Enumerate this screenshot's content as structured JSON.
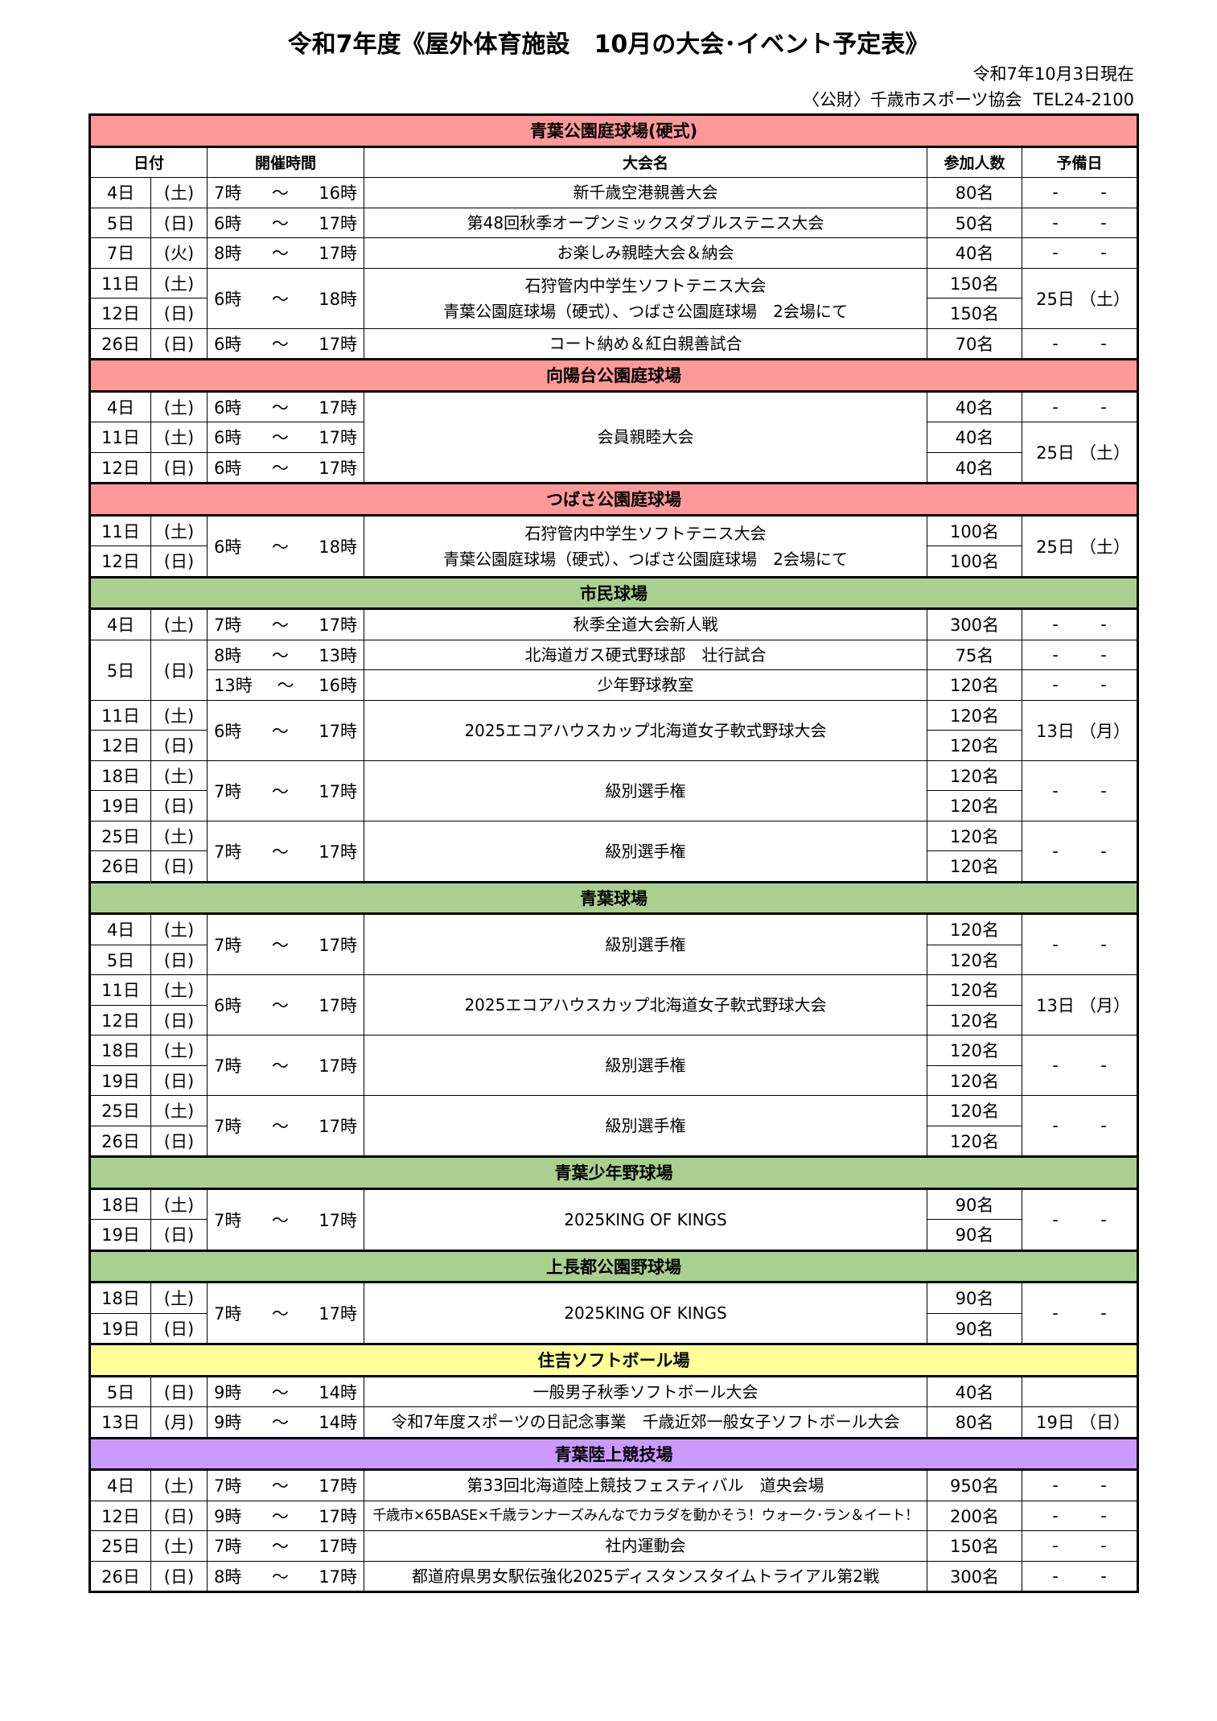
{
  "header": {
    "title": "令和7年度《屋外体育施設　10月の大会･イベント予定表》",
    "as_of": "令和7年10月3日現在",
    "org": "〈公財〉千歳市スポーツ協会",
    "tel": "TEL24-2100"
  },
  "columns": {
    "date": "日付",
    "time": "開催時間",
    "event": "大会名",
    "count": "参加人数",
    "reserve": "予備日"
  },
  "time_separator": "～",
  "colors": {
    "pink": "#ff9999",
    "green": "#a9d08e",
    "yellow": "#ffff99",
    "purple": "#cc99ff"
  },
  "sections": [
    {
      "name": "青葉公園庭球場(硬式)",
      "color": "#ff9999",
      "show_column_header": true,
      "rows": [
        {
          "day": "4日",
          "wd": "(土)",
          "from": "7時",
          "to": "16時",
          "event": [
            "新千歳空港親善大会"
          ],
          "count": "80名",
          "reserve": [
            "-",
            "-"
          ]
        },
        {
          "day": "5日",
          "wd": "(日)",
          "from": "6時",
          "to": "17時",
          "event": [
            "第48回秋季オープンミックスダブルステニス大会"
          ],
          "count": "50名",
          "reserve": [
            "-",
            "-"
          ]
        },
        {
          "day": "7日",
          "wd": "(火)",
          "from": "8時",
          "to": "17時",
          "event": [
            "お楽しみ親睦大会＆納会"
          ],
          "count": "40名",
          "reserve": [
            "-",
            "-"
          ]
        },
        {
          "day": "11日",
          "wd": "(土)",
          "from": "6時",
          "to": "18時",
          "event": [
            "石狩管内中学生ソフトテニス大会",
            "青葉公園庭球場（硬式）、つばさ公園庭球場　2会場にて"
          ],
          "count": "150名",
          "reserve": [
            "25日",
            "（土）"
          ]
        },
        {
          "day": "12日",
          "wd": "(日)",
          "count": "150名"
        },
        {
          "day": "26日",
          "wd": "(日)",
          "from": "6時",
          "to": "17時",
          "event": [
            "コート納め＆紅白親善試合"
          ],
          "count": "70名",
          "reserve": [
            "-",
            "-"
          ]
        }
      ]
    },
    {
      "name": "向陽台公園庭球場",
      "color": "#ff9999",
      "rows": [
        {
          "day": "4日",
          "wd": "(土)",
          "from": "6時",
          "to": "17時",
          "event": [
            "会員親睦大会"
          ],
          "count": "40名",
          "reserve": [
            "-",
            "-"
          ]
        },
        {
          "day": "11日",
          "wd": "(土)",
          "from": "6時",
          "to": "17時",
          "count": "40名",
          "reserve": [
            "25日",
            "（土）"
          ]
        },
        {
          "day": "12日",
          "wd": "(日)",
          "from": "6時",
          "to": "17時",
          "count": "40名"
        }
      ]
    },
    {
      "name": "つばさ公園庭球場",
      "color": "#ff9999",
      "rows": [
        {
          "day": "11日",
          "wd": "(土)",
          "from": "6時",
          "to": "18時",
          "event": [
            "石狩管内中学生ソフトテニス大会",
            "青葉公園庭球場（硬式）、つばさ公園庭球場　2会場にて"
          ],
          "count": "100名",
          "reserve": [
            "25日",
            "（土）"
          ]
        },
        {
          "day": "12日",
          "wd": "(日)",
          "count": "100名"
        }
      ]
    },
    {
      "name": "市民球場",
      "color": "#a9d08e",
      "rows": [
        {
          "day": "4日",
          "wd": "(土)",
          "from": "7時",
          "to": "17時",
          "event": [
            "秋季全道大会新人戦"
          ],
          "count": "300名",
          "reserve": [
            "-",
            "-"
          ]
        },
        {
          "day": "5日",
          "wd": "(日)",
          "from": "8時",
          "to": "13時",
          "event": [
            "北海道ガス硬式野球部　壮行試合"
          ],
          "count": "75名",
          "reserve": [
            "-",
            "-"
          ]
        },
        {
          "from": "13時",
          "to": "16時",
          "event": [
            "少年野球教室"
          ],
          "count": "120名",
          "reserve": [
            "-",
            "-"
          ]
        },
        {
          "day": "11日",
          "wd": "(土)",
          "from": "6時",
          "to": "17時",
          "event": [
            "2025エコアハウスカップ北海道女子軟式野球大会"
          ],
          "count": "120名",
          "reserve": [
            "13日",
            "（月）"
          ]
        },
        {
          "day": "12日",
          "wd": "(日)",
          "count": "120名"
        },
        {
          "day": "18日",
          "wd": "(土)",
          "from": "7時",
          "to": "17時",
          "event": [
            "級別選手権"
          ],
          "count": "120名",
          "reserve": [
            "-",
            "-"
          ]
        },
        {
          "day": "19日",
          "wd": "(日)",
          "count": "120名"
        },
        {
          "day": "25日",
          "wd": "(土)",
          "from": "7時",
          "to": "17時",
          "event": [
            "級別選手権"
          ],
          "count": "120名",
          "reserve": [
            "-",
            "-"
          ]
        },
        {
          "day": "26日",
          "wd": "(日)",
          "count": "120名"
        }
      ]
    },
    {
      "name": "青葉球場",
      "color": "#a9d08e",
      "rows": [
        {
          "day": "4日",
          "wd": "(土)",
          "from": "7時",
          "to": "17時",
          "event": [
            "級別選手権"
          ],
          "count": "120名",
          "reserve": [
            "-",
            "-"
          ]
        },
        {
          "day": "5日",
          "wd": "(日)",
          "count": "120名"
        },
        {
          "day": "11日",
          "wd": "(土)",
          "from": "6時",
          "to": "17時",
          "event": [
            "2025エコアハウスカップ北海道女子軟式野球大会"
          ],
          "count": "120名",
          "reserve": [
            "13日",
            "（月）"
          ]
        },
        {
          "day": "12日",
          "wd": "(日)",
          "count": "120名"
        },
        {
          "day": "18日",
          "wd": "(土)",
          "from": "7時",
          "to": "17時",
          "event": [
            "級別選手権"
          ],
          "count": "120名",
          "reserve": [
            "-",
            "-"
          ]
        },
        {
          "day": "19日",
          "wd": "(日)",
          "count": "120名"
        },
        {
          "day": "25日",
          "wd": "(土)",
          "from": "7時",
          "to": "17時",
          "event": [
            "級別選手権"
          ],
          "count": "120名",
          "reserve": [
            "-",
            "-"
          ]
        },
        {
          "day": "26日",
          "wd": "(日)",
          "count": "120名"
        }
      ]
    },
    {
      "name": "青葉少年野球場",
      "color": "#a9d08e",
      "rows": [
        {
          "day": "18日",
          "wd": "(土)",
          "from": "7時",
          "to": "17時",
          "event": [
            "2025KING OF KINGS"
          ],
          "count": "90名",
          "reserve": [
            "-",
            "-"
          ]
        },
        {
          "day": "19日",
          "wd": "(日)",
          "count": "90名"
        }
      ]
    },
    {
      "name": "上長都公園野球場",
      "color": "#a9d08e",
      "rows": [
        {
          "day": "18日",
          "wd": "(土)",
          "from": "7時",
          "to": "17時",
          "event": [
            "2025KING OF KINGS"
          ],
          "count": "90名",
          "reserve": [
            "-",
            "-"
          ]
        },
        {
          "day": "19日",
          "wd": "(日)",
          "count": "90名"
        }
      ]
    },
    {
      "name": "住吉ソフトボール場",
      "color": "#ffff99",
      "rows": [
        {
          "day": "5日",
          "wd": "(日)",
          "from": "9時",
          "to": "14時",
          "event": [
            "一般男子秋季ソフトボール大会"
          ],
          "count": "40名",
          "reserve": [
            "",
            ""
          ]
        },
        {
          "day": "13日",
          "wd": "(月)",
          "from": "9時",
          "to": "14時",
          "event": [
            "令和7年度スポーツの日記念事業　千歳近郊一般女子ソフトボール大会"
          ],
          "count": "80名",
          "reserve": [
            "19日",
            "（日）"
          ]
        }
      ]
    },
    {
      "name": "青葉陸上競技場",
      "color": "#cc99ff",
      "rows": [
        {
          "day": "4日",
          "wd": "(土)",
          "from": "7時",
          "to": "17時",
          "event": [
            "第33回北海道陸上競技フェスティバル　道央会場"
          ],
          "count": "950名",
          "reserve": [
            "-",
            "-"
          ]
        },
        {
          "day": "12日",
          "wd": "(日)",
          "from": "9時",
          "to": "17時",
          "event": [
            "千歳市×65BASE×千歳ランナーズみんなでカラダを動かそう！ウォーク･ラン＆イート！"
          ],
          "count": "200名",
          "reserve": [
            "-",
            "-"
          ]
        },
        {
          "day": "25日",
          "wd": "(土)",
          "from": "7時",
          "to": "17時",
          "event": [
            "社内運動会"
          ],
          "count": "150名",
          "reserve": [
            "-",
            "-"
          ]
        },
        {
          "day": "26日",
          "wd": "(日)",
          "from": "8時",
          "to": "17時",
          "event": [
            "都道府県男女駅伝強化2025ディスタンスタイムトライアル第2戦"
          ],
          "count": "300名",
          "reserve": [
            "-",
            "-"
          ]
        }
      ]
    }
  ]
}
